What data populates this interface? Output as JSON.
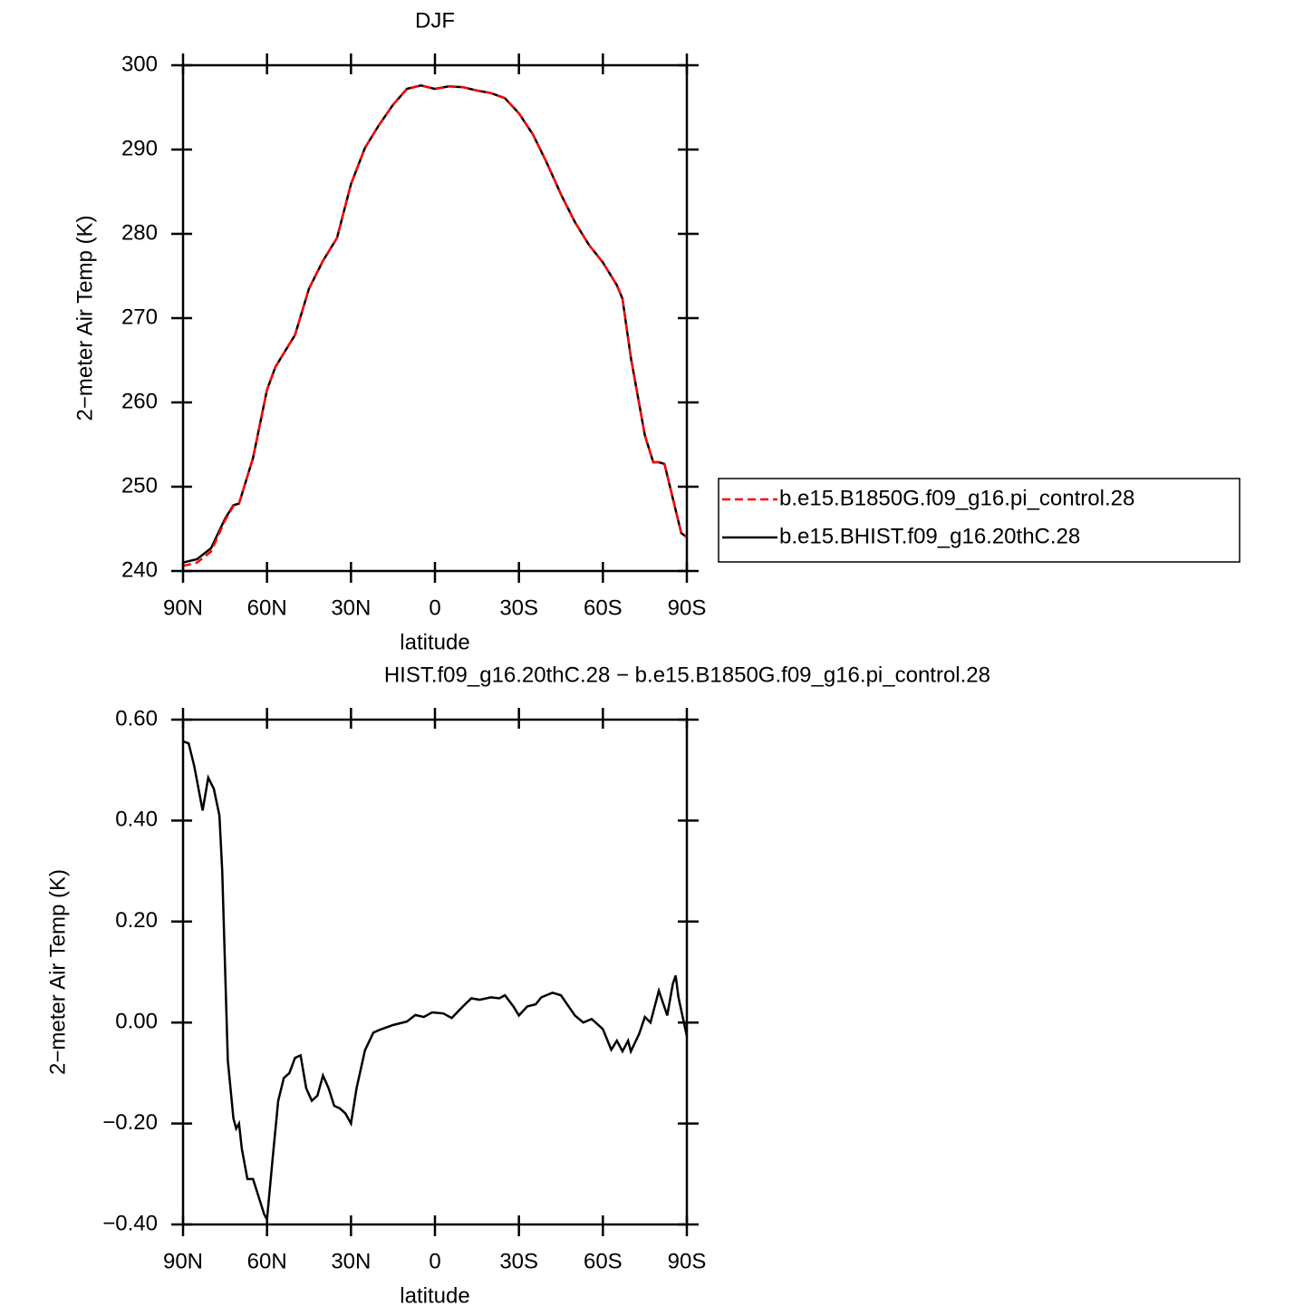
{
  "chart_data": [
    {
      "type": "line",
      "title": "DJF",
      "x_label": "latitude",
      "y_label": "2−meter Air Temp (K)",
      "x": [
        90,
        85,
        80,
        75,
        72,
        70,
        65,
        60,
        57,
        55,
        50,
        45,
        40,
        35,
        30,
        25,
        20,
        15,
        10,
        5,
        0,
        -5,
        -10,
        -15,
        -20,
        -25,
        -30,
        -35,
        -40,
        -45,
        -50,
        -55,
        -60,
        -65,
        -67,
        -70,
        -75,
        -78,
        -80,
        -82,
        -85,
        -88,
        -90
      ],
      "series": [
        {
          "name": "b.e15.B1850G.f09_g16.pi_control.28",
          "color": "#ff0000",
          "line_style": "dashed",
          "values": [
            240.6,
            241.0,
            242.3,
            246.0,
            247.7,
            248.0,
            253.4,
            261.5,
            264.2,
            265.3,
            268.0,
            273.5,
            276.8,
            279.5,
            285.9,
            290.2,
            292.9,
            295.3,
            297.2,
            297.6,
            297.2,
            297.5,
            297.4,
            297.0,
            296.7,
            296.1,
            294.3,
            291.8,
            288.4,
            284.7,
            281.4,
            278.7,
            276.6,
            273.9,
            272.3,
            265.3,
            256.1,
            252.9,
            252.9,
            252.7,
            248.6,
            244.5,
            244.0
          ]
        },
        {
          "name": "b.e15.BHIST.f09_g16.20thC.28",
          "color": "#000000",
          "line_style": "solid",
          "values": [
            241.0,
            241.4,
            242.7,
            246.2,
            247.8,
            248.0,
            253.4,
            261.5,
            264.2,
            265.3,
            268.0,
            273.5,
            276.8,
            279.5,
            285.9,
            290.2,
            292.9,
            295.3,
            297.2,
            297.6,
            297.2,
            297.5,
            297.4,
            297.0,
            296.7,
            296.1,
            294.3,
            291.8,
            288.4,
            284.7,
            281.4,
            278.7,
            276.6,
            273.9,
            272.3,
            265.3,
            256.1,
            252.9,
            252.9,
            252.7,
            248.6,
            244.5,
            244.0
          ]
        }
      ],
      "xlim": [
        90,
        -90
      ],
      "xticks": [
        {
          "value": 90,
          "label": "90N"
        },
        {
          "value": 60,
          "label": "60N"
        },
        {
          "value": 30,
          "label": "30N"
        },
        0,
        {
          "value": -30,
          "label": "30S"
        },
        {
          "value": -60,
          "label": "60S"
        },
        {
          "value": -90,
          "label": "90S"
        }
      ],
      "ylim": [
        240,
        300
      ],
      "yticks": [
        240,
        250,
        260,
        270,
        280,
        290,
        300
      ],
      "legend": "right"
    },
    {
      "type": "line",
      "title": "HIST.f09_g16.20thC.28 − b.e15.B1850G.f09_g16.pi_control.28",
      "x_label": "latitude",
      "y_label": "2−meter Air Temp (K)",
      "x": [
        90,
        88,
        86,
        83,
        81,
        79,
        77,
        76,
        74,
        72,
        71,
        70,
        69,
        67,
        65,
        63,
        61,
        60,
        58,
        56,
        54,
        52,
        50,
        48,
        46,
        44,
        42,
        40,
        38,
        36,
        34,
        32,
        30,
        28,
        25,
        22,
        20,
        15,
        10,
        7,
        4,
        1,
        -3,
        -6,
        -10,
        -13,
        -16,
        -20,
        -23,
        -25,
        -28,
        -30,
        -33,
        -36,
        -38,
        -42,
        -45,
        -50,
        -53,
        -56,
        -60,
        -63,
        -65,
        -67,
        -69,
        -70,
        -73,
        -75,
        -77,
        -80,
        -83,
        -85,
        -86,
        -87,
        -90
      ],
      "series": [
        {
          "color": "#000000",
          "line_style": "solid",
          "values": [
            0.557,
            0.553,
            0.508,
            0.42,
            0.485,
            0.463,
            0.41,
            0.3,
            -0.075,
            -0.19,
            -0.21,
            -0.2,
            -0.25,
            -0.31,
            -0.31,
            -0.345,
            -0.38,
            -0.39,
            -0.27,
            -0.155,
            -0.11,
            -0.1,
            -0.07,
            -0.065,
            -0.13,
            -0.155,
            -0.145,
            -0.105,
            -0.13,
            -0.165,
            -0.17,
            -0.18,
            -0.2,
            -0.13,
            -0.055,
            -0.02,
            -0.015,
            -0.005,
            0.002,
            0.015,
            0.011,
            0.02,
            0.018,
            0.009,
            0.032,
            0.048,
            0.045,
            0.05,
            0.048,
            0.054,
            0.032,
            0.014,
            0.032,
            0.036,
            0.05,
            0.059,
            0.054,
            0.014,
            0.0,
            0.007,
            -0.013,
            -0.054,
            -0.036,
            -0.057,
            -0.036,
            -0.057,
            -0.022,
            0.011,
            0.0,
            0.063,
            0.014,
            0.077,
            0.093,
            0.05,
            -0.027
          ]
        }
      ],
      "xlim": [
        90,
        -90
      ],
      "xticks": [
        {
          "value": 90,
          "label": "90N"
        },
        {
          "value": 60,
          "label": "60N"
        },
        {
          "value": 30,
          "label": "30N"
        },
        0,
        {
          "value": -30,
          "label": "30S"
        },
        {
          "value": -60,
          "label": "60S"
        },
        {
          "value": -90,
          "label": "90S"
        }
      ],
      "ylim": [
        -0.4,
        0.6
      ],
      "yticks": [
        {
          "value": -0.4,
          "label": "−0.40"
        },
        {
          "value": -0.2,
          "label": "−0.20"
        },
        {
          "value": 0,
          "label": "0.00"
        },
        {
          "value": 0.2,
          "label": "0.20"
        },
        {
          "value": 0.4,
          "label": "0.40"
        },
        {
          "value": 0.6,
          "label": "0.60"
        }
      ]
    }
  ]
}
